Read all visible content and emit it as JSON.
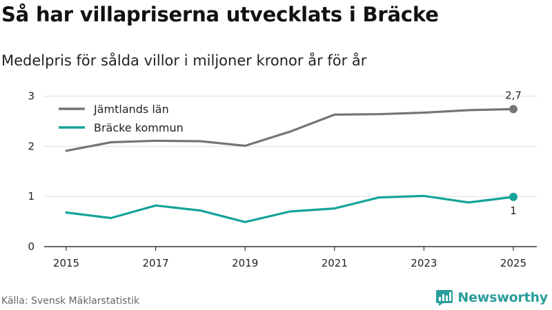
{
  "title": "Så har villapriserna utvecklats i Bräcke",
  "subtitle": "Medelpris för sålda villor i miljoner kronor år för år",
  "source": "Källa: Svensk Mäklarstatistik",
  "brand": {
    "name": "Newsworthy",
    "icon": "bar-chart-speech-bubble-icon",
    "color": "#2a9d9a"
  },
  "chart_data": {
    "type": "line",
    "title": "Så har villapriserna utvecklats i Bräcke",
    "xlabel": "",
    "ylabel": "",
    "x": [
      2015,
      2016,
      2017,
      2018,
      2019,
      2020,
      2021,
      2022,
      2023,
      2024,
      2025
    ],
    "x_ticks": [
      "2015",
      "2017",
      "2019",
      "2021",
      "2023",
      "2025"
    ],
    "y_ticks": [
      "0",
      "1",
      "2",
      "3"
    ],
    "xlim": [
      2015,
      2025
    ],
    "ylim": [
      0,
      3
    ],
    "grid": true,
    "legend_position": "top-left",
    "series": [
      {
        "name": "Jämtlands län",
        "color": "#757575",
        "end_label": "2,7",
        "values": [
          1.91,
          2.08,
          2.11,
          2.1,
          2.01,
          2.29,
          2.63,
          2.64,
          2.67,
          2.72,
          2.74
        ]
      },
      {
        "name": "Bräcke kommun",
        "color": "#13a39a",
        "end_label": "1",
        "values": [
          0.68,
          0.57,
          0.82,
          0.72,
          0.49,
          0.7,
          0.76,
          0.98,
          1.01,
          0.88,
          0.99
        ]
      }
    ]
  }
}
